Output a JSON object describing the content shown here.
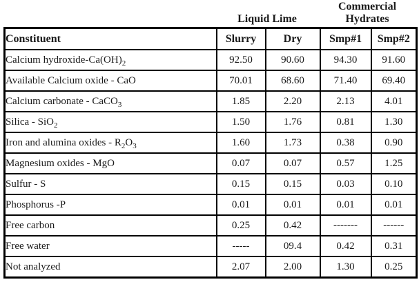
{
  "page": {
    "background": "#ffffff",
    "text_color": "#1b1b1b",
    "border_color": "#000000"
  },
  "group_header": {
    "liquid_lime_label": "Liquid Lime",
    "commercial_hydrates_label": "Commercial\nHydrates"
  },
  "chart_data": {
    "type": "table",
    "title": "",
    "column_groups": [
      {
        "label": "Liquid Lime",
        "columns": [
          "Slurry",
          "Dry"
        ]
      },
      {
        "label": "Commercial Hydrates",
        "columns": [
          "Smp#1",
          "Smp#2"
        ]
      }
    ],
    "columns": [
      "Constituent",
      "Slurry",
      "Dry",
      "Smp#1",
      "Smp#2"
    ],
    "rows": [
      {
        "constituent": "Calcium hydroxide-Ca(OH)2",
        "values": [
          "92.50",
          "90.60",
          "94.30",
          "91.60"
        ]
      },
      {
        "constituent": "Available Calcium oxide - CaO",
        "values": [
          "70.01",
          "68.60",
          "71.40",
          "69.40"
        ]
      },
      {
        "constituent": "Calcium carbonate - CaCO3",
        "values": [
          "1.85",
          "2.20",
          "2.13",
          "4.01"
        ]
      },
      {
        "constituent": "Silica - SiO2",
        "values": [
          "1.50",
          "1.76",
          "0.81",
          "1.30"
        ]
      },
      {
        "constituent": "Iron and alumina oxides - R2O3",
        "values": [
          "1.60",
          "1.73",
          "0.38",
          "0.90"
        ]
      },
      {
        "constituent": "Magnesium oxides - MgO",
        "values": [
          "0.07",
          "0.07",
          "0.57",
          "1.25"
        ]
      },
      {
        "constituent": "Sulfur - S",
        "values": [
          "0.15",
          "0.15",
          "0.03",
          "0.10"
        ]
      },
      {
        "constituent": "Phosphorus -P",
        "values": [
          "0.01",
          "0.01",
          "0.01",
          "0.01"
        ]
      },
      {
        "constituent": "Free carbon",
        "values": [
          "0.25",
          "0.42",
          "-------",
          "------"
        ]
      },
      {
        "constituent": "Free water",
        "values": [
          "-----",
          "09.4",
          "0.42",
          "0.31"
        ]
      },
      {
        "constituent": "Not analyzed",
        "values": [
          "2.07",
          "2.00",
          "1.30",
          "0.25"
        ]
      }
    ]
  },
  "table": {
    "columns": [
      "Constituent",
      "Slurry",
      "Dry",
      "Smp#1",
      "Smp#2"
    ],
    "rows": [
      {
        "constituent": [
          {
            "text": "Calcium hydroxide-Ca(OH)"
          },
          {
            "text": "2",
            "sub": true
          }
        ],
        "values": [
          "92.50",
          "90.60",
          "94.30",
          "91.60"
        ]
      },
      {
        "constituent": [
          {
            "text": "Available Calcium oxide - CaO"
          }
        ],
        "values": [
          "70.01",
          "68.60",
          "71.40",
          "69.40"
        ]
      },
      {
        "constituent": [
          {
            "text": "Calcium carbonate - CaCO"
          },
          {
            "text": "3",
            "sub": true
          }
        ],
        "values": [
          "1.85",
          "2.20",
          "2.13",
          "4.01"
        ]
      },
      {
        "constituent": [
          {
            "text": "Silica - SiO"
          },
          {
            "text": "2",
            "sub": true
          }
        ],
        "values": [
          "1.50",
          "1.76",
          "0.81",
          "1.30"
        ]
      },
      {
        "constituent": [
          {
            "text": "Iron and alumina oxides - R"
          },
          {
            "text": "2",
            "sub": true
          },
          {
            "text": "O"
          },
          {
            "text": "3",
            "sub": true
          }
        ],
        "values": [
          "1.60",
          "1.73",
          "0.38",
          "0.90"
        ]
      },
      {
        "constituent": [
          {
            "text": "Magnesium oxides - MgO"
          }
        ],
        "values": [
          "0.07",
          "0.07",
          "0.57",
          "1.25"
        ]
      },
      {
        "constituent": [
          {
            "text": "Sulfur - S"
          }
        ],
        "values": [
          "0.15",
          "0.15",
          "0.03",
          "0.10"
        ]
      },
      {
        "constituent": [
          {
            "text": "Phosphorus -P"
          }
        ],
        "values": [
          "0.01",
          "0.01",
          "0.01",
          "0.01"
        ]
      },
      {
        "constituent": [
          {
            "text": "Free carbon"
          }
        ],
        "values": [
          "0.25",
          "0.42",
          "-------",
          "------"
        ]
      },
      {
        "constituent": [
          {
            "text": "Free water"
          }
        ],
        "values": [
          "-----",
          "09.4",
          "0.42",
          "0.31"
        ]
      },
      {
        "constituent": [
          {
            "text": "Not analyzed"
          }
        ],
        "values": [
          "2.07",
          "2.00",
          "1.30",
          "0.25"
        ]
      }
    ]
  }
}
